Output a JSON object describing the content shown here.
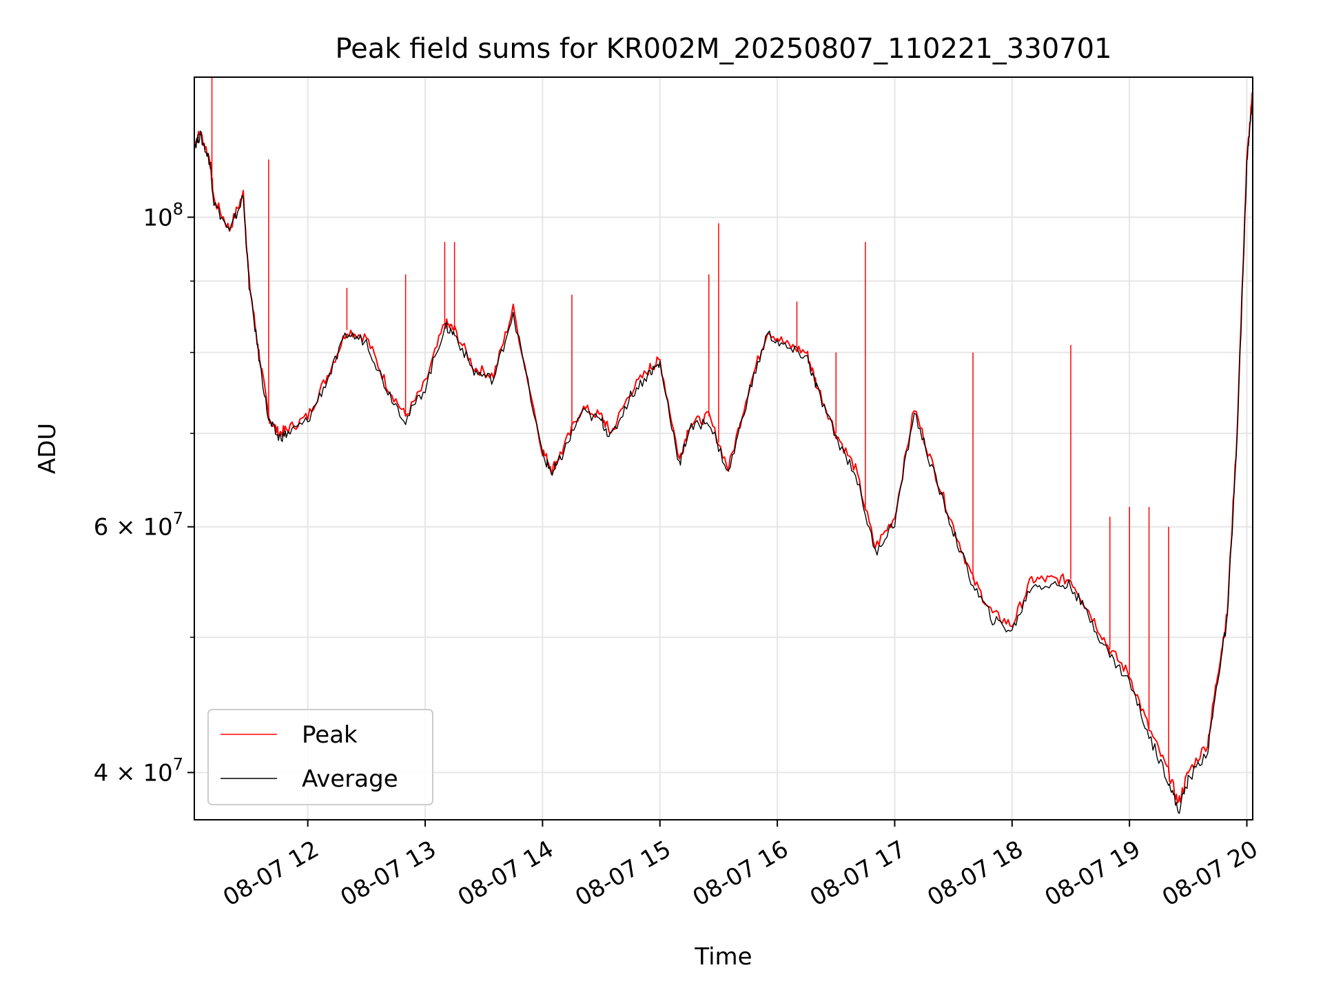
{
  "chart_data": {
    "type": "line",
    "title": "Peak field sums for KR002M_20250807_110221_330701",
    "xlabel": "Time",
    "ylabel": "ADU",
    "xlim": [
      "2025-08-07 11:02",
      "2025-08-07 20:03"
    ],
    "ylim": [
      37000000,
      126000000
    ],
    "yscale": "log",
    "grid": true,
    "legend_position": "lower-left",
    "x_ticks": [
      {
        "x": "2025-08-07 12:00",
        "label": "08-07 12"
      },
      {
        "x": "2025-08-07 13:00",
        "label": "08-07 13"
      },
      {
        "x": "2025-08-07 14:00",
        "label": "08-07 14"
      },
      {
        "x": "2025-08-07 15:00",
        "label": "08-07 15"
      },
      {
        "x": "2025-08-07 16:00",
        "label": "08-07 16"
      },
      {
        "x": "2025-08-07 17:00",
        "label": "08-07 17"
      },
      {
        "x": "2025-08-07 18:00",
        "label": "08-07 18"
      },
      {
        "x": "2025-08-07 19:00",
        "label": "08-07 19"
      },
      {
        "x": "2025-08-07 20:00",
        "label": "08-07 20"
      }
    ],
    "y_ticks": [
      {
        "value": 40000000,
        "label_base": "4 × 10",
        "label_exp": "7"
      },
      {
        "value": 60000000,
        "label_base": "6 × 10",
        "label_exp": "7"
      },
      {
        "value": 100000000,
        "label_base": "10",
        "label_exp": "8"
      }
    ],
    "y_minor_gridlines": [
      50000000,
      70000000,
      80000000,
      90000000
    ],
    "series": [
      {
        "name": "Peak",
        "color": "#ff0000",
        "x": [
          "2025-08-07 11:02",
          "2025-08-07 11:05",
          "2025-08-07 11:10",
          "2025-08-07 11:12",
          "2025-08-07 11:20",
          "2025-08-07 11:27",
          "2025-08-07 11:30",
          "2025-08-07 11:35",
          "2025-08-07 11:40",
          "2025-08-07 11:45",
          "2025-08-07 11:50",
          "2025-08-07 12:00",
          "2025-08-07 12:10",
          "2025-08-07 12:20",
          "2025-08-07 12:30",
          "2025-08-07 12:40",
          "2025-08-07 12:50",
          "2025-08-07 13:00",
          "2025-08-07 13:10",
          "2025-08-07 13:15",
          "2025-08-07 13:25",
          "2025-08-07 13:35",
          "2025-08-07 13:45",
          "2025-08-07 14:00",
          "2025-08-07 14:05",
          "2025-08-07 14:10",
          "2025-08-07 14:20",
          "2025-08-07 14:30",
          "2025-08-07 14:35",
          "2025-08-07 14:45",
          "2025-08-07 14:55",
          "2025-08-07 15:00",
          "2025-08-07 15:10",
          "2025-08-07 15:15",
          "2025-08-07 15:25",
          "2025-08-07 15:35",
          "2025-08-07 15:45",
          "2025-08-07 15:55",
          "2025-08-07 16:05",
          "2025-08-07 16:15",
          "2025-08-07 16:20",
          "2025-08-07 16:30",
          "2025-08-07 16:40",
          "2025-08-07 16:50",
          "2025-08-07 17:00",
          "2025-08-07 17:10",
          "2025-08-07 17:20",
          "2025-08-07 17:30",
          "2025-08-07 17:40",
          "2025-08-07 17:50",
          "2025-08-07 18:00",
          "2025-08-07 18:10",
          "2025-08-07 18:20",
          "2025-08-07 18:30",
          "2025-08-07 18:40",
          "2025-08-07 18:50",
          "2025-08-07 19:00",
          "2025-08-07 19:10",
          "2025-08-07 19:20",
          "2025-08-07 19:25",
          "2025-08-07 19:30",
          "2025-08-07 19:40",
          "2025-08-07 19:45",
          "2025-08-07 19:50",
          "2025-08-07 19:55",
          "2025-08-07 20:00",
          "2025-08-07 20:03"
        ],
        "values": [
          113000000,
          115000000,
          110000000,
          103000000,
          98000000,
          104000000,
          90000000,
          80000000,
          72000000,
          70000000,
          70500000,
          72000000,
          77000000,
          83000000,
          82000000,
          76000000,
          72000000,
          76000000,
          84000000,
          83000000,
          78000000,
          77000000,
          86000000,
          68000000,
          66000000,
          68000000,
          73000000,
          72000000,
          70000000,
          75000000,
          78000000,
          79000000,
          67000000,
          71000000,
          72000000,
          66000000,
          75000000,
          83000000,
          81000000,
          80000000,
          76000000,
          70000000,
          66000000,
          58000000,
          61000000,
          73000000,
          66000000,
          60000000,
          55000000,
          52000000,
          51000000,
          55000000,
          55000000,
          55000000,
          52000000,
          49000000,
          47000000,
          43000000,
          40000000,
          38000000,
          40000000,
          42000000,
          47000000,
          52000000,
          70000000,
          110000000,
          123000000
        ]
      },
      {
        "name": "Average",
        "color": "#000000",
        "x": [
          "2025-08-07 11:02",
          "2025-08-07 11:05",
          "2025-08-07 11:10",
          "2025-08-07 11:12",
          "2025-08-07 11:20",
          "2025-08-07 11:27",
          "2025-08-07 11:30",
          "2025-08-07 11:35",
          "2025-08-07 11:40",
          "2025-08-07 11:45",
          "2025-08-07 11:50",
          "2025-08-07 12:00",
          "2025-08-07 12:10",
          "2025-08-07 12:20",
          "2025-08-07 12:30",
          "2025-08-07 12:40",
          "2025-08-07 12:50",
          "2025-08-07 13:00",
          "2025-08-07 13:10",
          "2025-08-07 13:15",
          "2025-08-07 13:25",
          "2025-08-07 13:35",
          "2025-08-07 13:45",
          "2025-08-07 14:00",
          "2025-08-07 14:05",
          "2025-08-07 14:10",
          "2025-08-07 14:20",
          "2025-08-07 14:30",
          "2025-08-07 14:35",
          "2025-08-07 14:45",
          "2025-08-07 14:55",
          "2025-08-07 15:00",
          "2025-08-07 15:10",
          "2025-08-07 15:15",
          "2025-08-07 15:25",
          "2025-08-07 15:35",
          "2025-08-07 15:45",
          "2025-08-07 15:55",
          "2025-08-07 16:05",
          "2025-08-07 16:15",
          "2025-08-07 16:20",
          "2025-08-07 16:30",
          "2025-08-07 16:40",
          "2025-08-07 16:50",
          "2025-08-07 17:00",
          "2025-08-07 17:10",
          "2025-08-07 17:20",
          "2025-08-07 17:30",
          "2025-08-07 17:40",
          "2025-08-07 17:50",
          "2025-08-07 18:00",
          "2025-08-07 18:10",
          "2025-08-07 18:20",
          "2025-08-07 18:30",
          "2025-08-07 18:40",
          "2025-08-07 18:50",
          "2025-08-07 19:00",
          "2025-08-07 19:10",
          "2025-08-07 19:20",
          "2025-08-07 19:25",
          "2025-08-07 19:30",
          "2025-08-07 19:40",
          "2025-08-07 19:45",
          "2025-08-07 19:50",
          "2025-08-07 19:55",
          "2025-08-07 20:00",
          "2025-08-07 20:03"
        ],
        "values": [
          112500000,
          114500000,
          109500000,
          102500000,
          97500000,
          103500000,
          89500000,
          79500000,
          71500000,
          69500000,
          70000000,
          71500000,
          76500000,
          82500000,
          81500000,
          75500000,
          71500000,
          75500000,
          83500000,
          82500000,
          77500000,
          76500000,
          85500000,
          67500000,
          65500000,
          67500000,
          72500000,
          71500000,
          69500000,
          74500000,
          77500000,
          78500000,
          66500000,
          70500000,
          71500000,
          65500000,
          74500000,
          82500000,
          80500000,
          79500000,
          75500000,
          69500000,
          65500000,
          57500000,
          60500000,
          72500000,
          65500000,
          59500000,
          54500000,
          51500000,
          50500000,
          54500000,
          54500000,
          54500000,
          51500000,
          48500000,
          46500000,
          42500000,
          39500000,
          37500000,
          39500000,
          41500000,
          46500000,
          51500000,
          69500000,
          109000000,
          122500000
        ]
      }
    ],
    "spikes": [
      {
        "series": "Peak",
        "x": "2025-08-07 11:11",
        "value": 126000000
      },
      {
        "series": "Peak",
        "x": "2025-08-07 11:40",
        "value": 110000000
      },
      {
        "series": "Peak",
        "x": "2025-08-07 12:20",
        "value": 89000000
      },
      {
        "series": "Peak",
        "x": "2025-08-07 12:50",
        "value": 91000000
      },
      {
        "series": "Peak",
        "x": "2025-08-07 13:10",
        "value": 96000000
      },
      {
        "series": "Peak",
        "x": "2025-08-07 13:15",
        "value": 96000000
      },
      {
        "series": "Peak",
        "x": "2025-08-07 14:15",
        "value": 88000000
      },
      {
        "series": "Peak",
        "x": "2025-08-07 15:25",
        "value": 91000000
      },
      {
        "series": "Peak",
        "x": "2025-08-07 15:30",
        "value": 99000000
      },
      {
        "series": "Peak",
        "x": "2025-08-07 16:10",
        "value": 87000000
      },
      {
        "series": "Peak",
        "x": "2025-08-07 16:30",
        "value": 80000000
      },
      {
        "series": "Peak",
        "x": "2025-08-07 16:45",
        "value": 96000000
      },
      {
        "series": "Peak",
        "x": "2025-08-07 17:40",
        "value": 80000000
      },
      {
        "series": "Peak",
        "x": "2025-08-07 18:30",
        "value": 81000000
      },
      {
        "series": "Peak",
        "x": "2025-08-07 18:50",
        "value": 61000000
      },
      {
        "series": "Peak",
        "x": "2025-08-07 19:00",
        "value": 62000000
      },
      {
        "series": "Peak",
        "x": "2025-08-07 19:10",
        "value": 62000000
      },
      {
        "series": "Peak",
        "x": "2025-08-07 19:20",
        "value": 60000000
      }
    ]
  }
}
